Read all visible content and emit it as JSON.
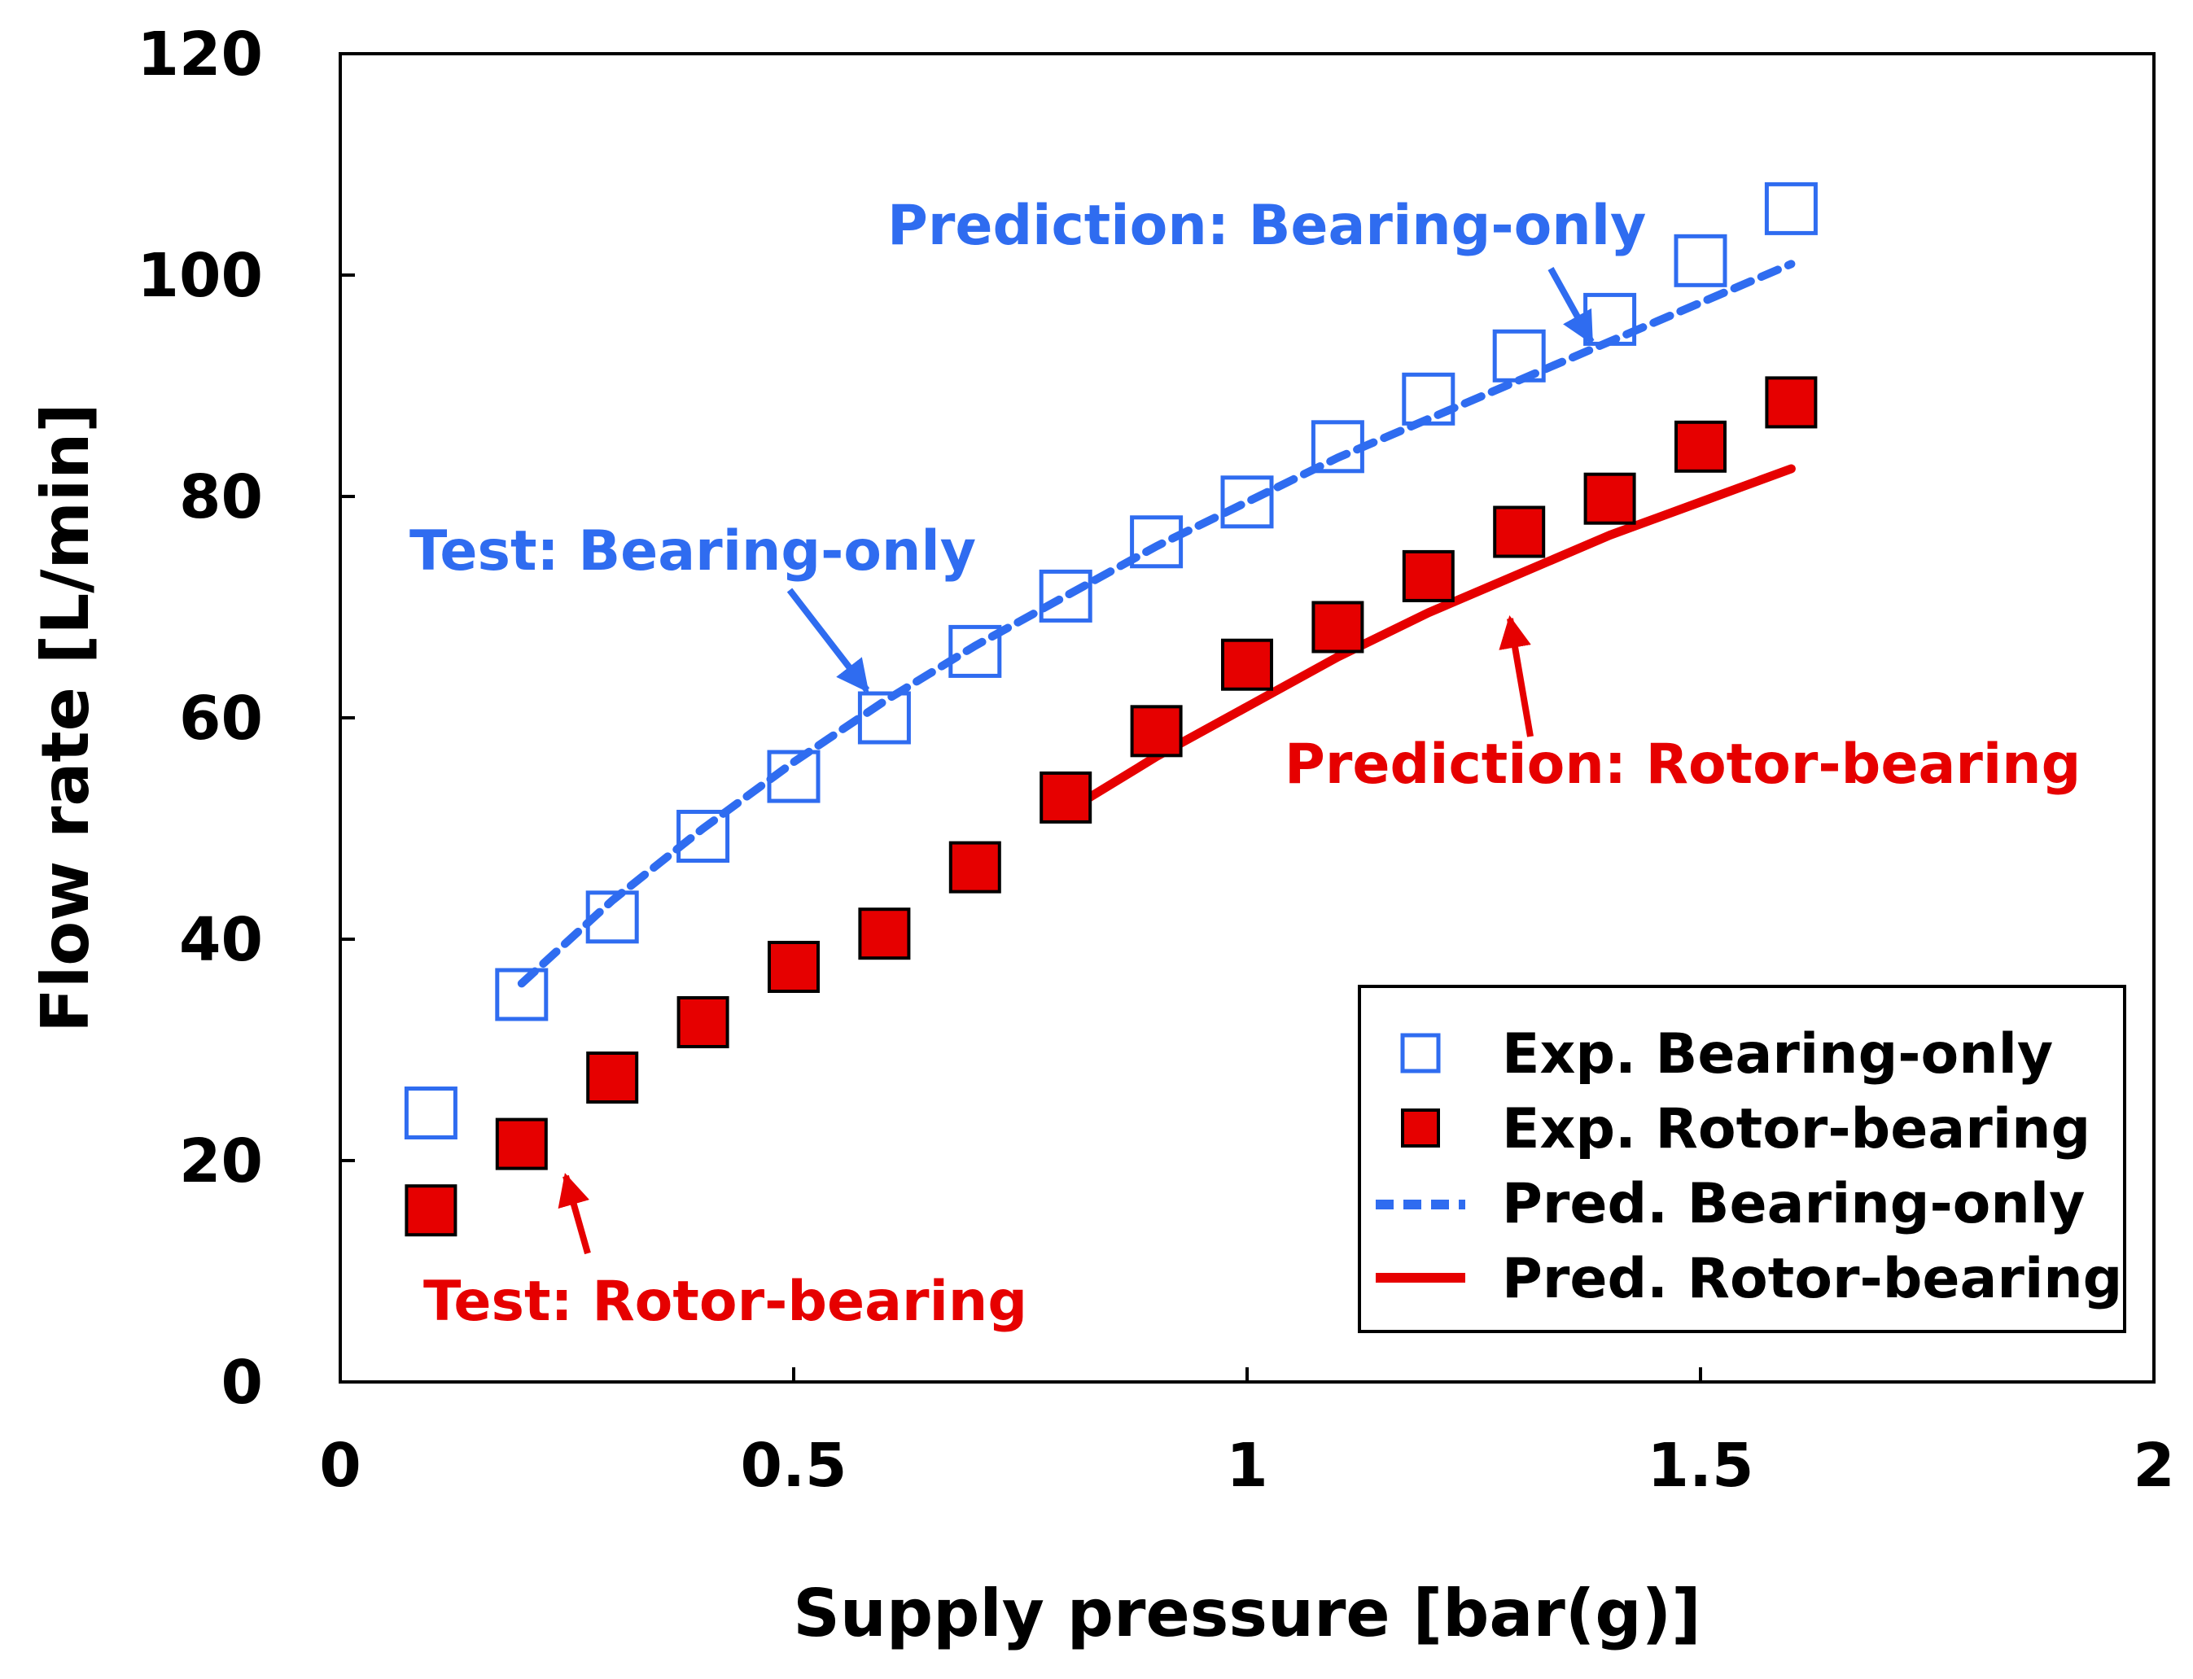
{
  "chart_data": {
    "type": "scatter",
    "xlabel": "Supply pressure [bar(g)]",
    "ylabel": "Flow rate [L/min]",
    "xlim": [
      0,
      2
    ],
    "ylim": [
      0,
      120
    ],
    "xticks": [
      0,
      0.5,
      1,
      1.5,
      2
    ],
    "xtick_labels": [
      "0",
      "0.5",
      "1",
      "1.5",
      "2"
    ],
    "yticks": [
      0,
      20,
      40,
      60,
      80,
      100,
      120
    ],
    "ytick_labels": [
      "0",
      "20",
      "40",
      "60",
      "80",
      "100",
      "120"
    ],
    "grid": false,
    "legend_position": "bottom-right",
    "series": [
      {
        "name": "Exp. Bearing-only",
        "kind": "marker-open-square",
        "color": "#2f6cf0",
        "x": [
          0.1,
          0.2,
          0.3,
          0.4,
          0.5,
          0.6,
          0.7,
          0.8,
          0.9,
          1.0,
          1.1,
          1.2,
          1.3,
          1.4,
          1.5,
          1.6
        ],
        "y": [
          24.3,
          35.0,
          42.0,
          49.3,
          54.7,
          60.0,
          66.0,
          71.0,
          75.9,
          79.5,
          84.5,
          88.8,
          92.7,
          96.0,
          101.3,
          106.0
        ]
      },
      {
        "name": "Exp. Rotor-bearing",
        "kind": "marker-filled-square",
        "color": "#e60000",
        "x": [
          0.1,
          0.2,
          0.3,
          0.4,
          0.5,
          0.6,
          0.7,
          0.8,
          0.9,
          1.0,
          1.1,
          1.2,
          1.3,
          1.4,
          1.5,
          1.6
        ],
        "y": [
          15.5,
          21.5,
          27.5,
          32.5,
          37.5,
          40.5,
          46.5,
          52.8,
          58.8,
          64.8,
          68.2,
          72.8,
          76.8,
          79.8,
          84.5,
          88.5
        ]
      },
      {
        "name": "Pred. Bearing-only",
        "kind": "line-dashed",
        "color": "#2f6cf0",
        "x": [
          0.2,
          0.3,
          0.4,
          0.5,
          0.6,
          0.7,
          0.8,
          0.9,
          1.0,
          1.1,
          1.2,
          1.3,
          1.4,
          1.5,
          1.6
        ],
        "y": [
          36.0,
          43.5,
          50.0,
          56.0,
          61.5,
          66.5,
          71.0,
          75.5,
          79.5,
          83.5,
          87.0,
          90.5,
          94.0,
          97.5,
          101.0
        ]
      },
      {
        "name": "Pred. Rotor-bearing",
        "kind": "line-solid",
        "color": "#e60000",
        "x": [
          0.8,
          0.9,
          1.0,
          1.1,
          1.2,
          1.3,
          1.4,
          1.5,
          1.6
        ],
        "y": [
          51.5,
          56.5,
          61.0,
          65.5,
          69.5,
          73.0,
          76.5,
          79.5,
          82.5
        ]
      }
    ],
    "annotations": [
      {
        "text": "Prediction:  Bearing-only",
        "color": "#2f6cf0",
        "points_to": [
          1.38,
          93.0
        ]
      },
      {
        "text": "Test:  Bearing-only",
        "color": "#2f6cf0",
        "points_to": [
          0.59,
          62.0
        ]
      },
      {
        "text": "Prediction:  Rotor-bearing",
        "color": "#e60000",
        "points_to": [
          1.27,
          71.0
        ]
      },
      {
        "text": "Test:  Rotor-bearing",
        "color": "#e60000",
        "points_to": [
          0.24,
          19.0
        ]
      }
    ]
  }
}
